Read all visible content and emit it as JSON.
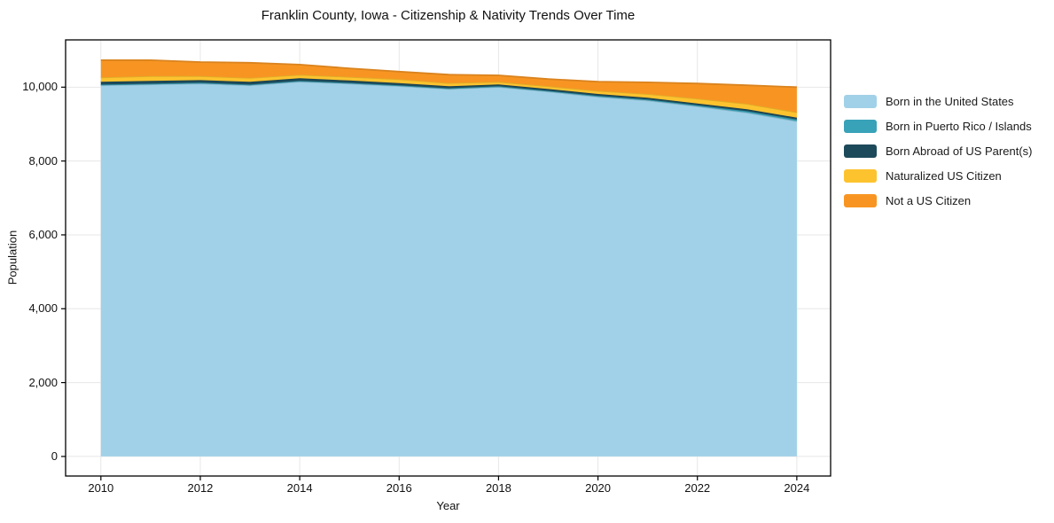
{
  "chart_data": {
    "type": "area",
    "stacked": true,
    "title": "Franklin County, Iowa - Citizenship & Nativity Trends Over Time",
    "xlabel": "Year",
    "ylabel": "Population",
    "x": [
      2010,
      2011,
      2012,
      2013,
      2014,
      2015,
      2016,
      2017,
      2018,
      2019,
      2020,
      2021,
      2022,
      2023,
      2024
    ],
    "series": [
      {
        "name": "Born in the United States",
        "color": "#a1d1e8",
        "values": [
          10050,
          10075,
          10100,
          10050,
          10150,
          10095,
          10030,
          9950,
          10005,
          9880,
          9740,
          9640,
          9480,
          9310,
          9080
        ]
      },
      {
        "name": "Born in Puerto Rico / Islands",
        "color": "#38a2b8",
        "values": [
          20,
          20,
          20,
          20,
          20,
          20,
          20,
          20,
          20,
          20,
          25,
          25,
          30,
          40,
          45
        ]
      },
      {
        "name": "Born Abroad of US Parent(s)",
        "color": "#1d4a5a",
        "values": [
          75,
          75,
          70,
          75,
          70,
          65,
          60,
          55,
          50,
          50,
          50,
          50,
          50,
          50,
          50
        ]
      },
      {
        "name": "Naturalized US Citizen",
        "color": "#fdc32f",
        "values": [
          120,
          130,
          110,
          105,
          95,
          100,
          105,
          85,
          70,
          75,
          85,
          100,
          130,
          150,
          145
        ]
      },
      {
        "name": "Not a US Citizen",
        "color": "#f89522",
        "values": [
          465,
          430,
          380,
          410,
          275,
          230,
          205,
          230,
          175,
          195,
          250,
          315,
          410,
          500,
          680
        ]
      }
    ],
    "x_ticks": {
      "values": [
        2010,
        2012,
        2014,
        2016,
        2018,
        2020,
        2022,
        2024
      ],
      "labels": [
        "2010",
        "2012",
        "2014",
        "2016",
        "2018",
        "2020",
        "2022",
        "2024"
      ]
    },
    "y_ticks": {
      "values": [
        0,
        2000,
        4000,
        6000,
        8000,
        10000
      ],
      "labels": [
        "0",
        "2,000",
        "4,000",
        "6,000",
        "8,000",
        "10,000"
      ]
    },
    "xlim": [
      2009.29,
      2024.68
    ],
    "ylim": [
      -530,
      11280
    ],
    "grid": true,
    "grid_color": "#e7e7e7",
    "spine_color": "#000000",
    "legend_position": "outside-right"
  }
}
